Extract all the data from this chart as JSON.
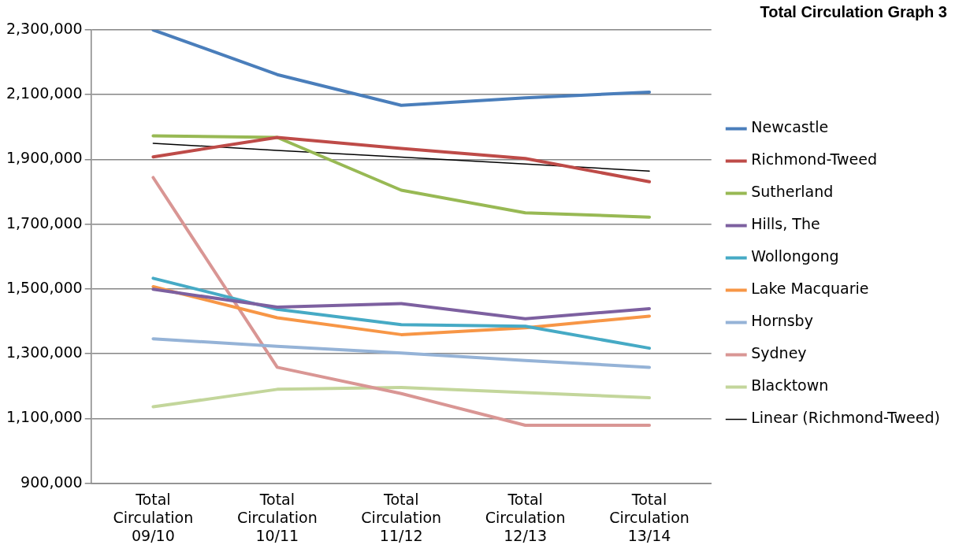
{
  "chart_data": {
    "type": "line",
    "title": "Total Circulation Graph 3",
    "categories": [
      "Total Circulation 09/10",
      "Total Circulation 10/11",
      "Total Circulation 11/12",
      "Total Circulation 12/13",
      "Total Circulation 13/14"
    ],
    "series": [
      {
        "name": "Newcastle",
        "color": "#4a7ebb",
        "values": [
          2300000,
          2162000,
          2067000,
          2090000,
          2108000
        ]
      },
      {
        "name": "Richmond-Tweed",
        "color": "#be4b48",
        "values": [
          1908000,
          1968000,
          1934000,
          1903000,
          1831000
        ]
      },
      {
        "name": "Sutherland",
        "color": "#98b954",
        "values": [
          1973000,
          1968000,
          1805000,
          1735000,
          1722000
        ]
      },
      {
        "name": "Hills, The",
        "color": "#7d60a0",
        "values": [
          1499000,
          1444000,
          1455000,
          1408000,
          1439000
        ]
      },
      {
        "name": "Wollongong",
        "color": "#46aac5",
        "values": [
          1533000,
          1437000,
          1390000,
          1385000,
          1317000
        ]
      },
      {
        "name": "Lake Macquarie",
        "color": "#f79646",
        "values": [
          1507000,
          1411000,
          1359000,
          1380000,
          1416000
        ]
      },
      {
        "name": "Hornsby",
        "color": "#95b3d7",
        "values": [
          1346000,
          1323000,
          1302000,
          1279000,
          1258000
        ]
      },
      {
        "name": "Sydney",
        "color": "#d99694",
        "values": [
          1844000,
          1258000,
          1177000,
          1079000,
          1079000
        ]
      },
      {
        "name": "Blacktown",
        "color": "#c3d69b",
        "values": [
          1136000,
          1190000,
          1196000,
          1180000,
          1164000
        ]
      },
      {
        "name": "Linear (Richmond-Tweed)",
        "color": "#000000",
        "values": [
          1950000,
          1928000,
          1907000,
          1886000,
          1864000
        ]
      }
    ],
    "ylim": [
      900000,
      2300000
    ],
    "yticks": [
      {
        "value": 900000,
        "label": "900,000"
      },
      {
        "value": 1100000,
        "label": "1,100,000"
      },
      {
        "value": 1300000,
        "label": "1,300,000"
      },
      {
        "value": 1500000,
        "label": "1,500,000"
      },
      {
        "value": 1700000,
        "label": "1,700,000"
      },
      {
        "value": 1900000,
        "label": "1,900,000"
      },
      {
        "value": 2100000,
        "label": "2,100,000"
      },
      {
        "value": 2300000,
        "label": "2,300,000"
      }
    ],
    "grid": "y",
    "legend": "right",
    "marker": "none",
    "line_style": "solid"
  }
}
